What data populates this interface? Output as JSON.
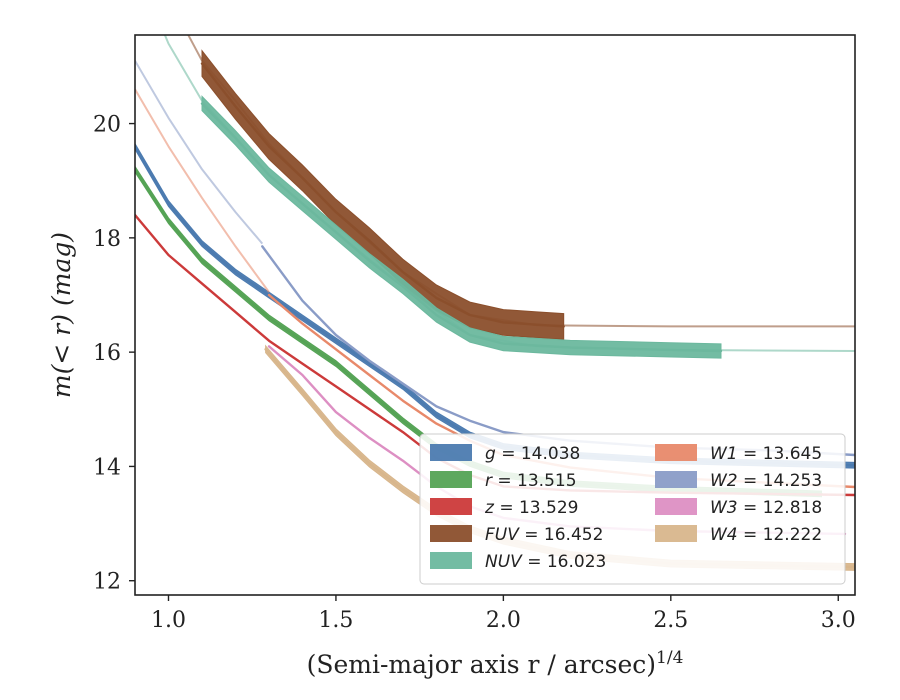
{
  "chart_data": {
    "type": "line",
    "xlabel_main": "(Semi-major axis r / arcsec)",
    "xlabel_sup": "1/4",
    "ylabel": "m(< r) (mag)",
    "xlim": [
      0.9,
      3.05
    ],
    "ylim": [
      21.55,
      11.75
    ],
    "y_inverted": true,
    "xticks": [
      "1.0",
      "1.5",
      "2.0",
      "2.5",
      "3.0"
    ],
    "xtick_values": [
      1.0,
      1.5,
      2.0,
      2.5,
      3.0
    ],
    "yticks": [
      "12",
      "14",
      "16",
      "18",
      "20"
    ],
    "ytick_values": [
      12,
      14,
      16,
      18,
      20
    ],
    "grid": false,
    "legend_placement": "lower-right",
    "series": [
      {
        "name": "g = 14.038",
        "legend_var": "g",
        "legend_val": "14.038",
        "color": "#4c7bb0",
        "solid": [
          [
            0.9,
            19.6
          ],
          [
            1.0,
            18.6
          ],
          [
            1.1,
            17.9
          ],
          [
            1.2,
            17.4
          ],
          [
            1.3,
            17.0
          ],
          [
            1.4,
            16.6
          ],
          [
            1.5,
            16.2
          ],
          [
            1.6,
            15.8
          ],
          [
            1.7,
            15.4
          ],
          [
            1.8,
            14.9
          ],
          [
            1.9,
            14.55
          ],
          [
            2.0,
            14.35
          ],
          [
            2.2,
            14.2
          ],
          [
            2.5,
            14.1
          ],
          [
            3.05,
            14.02
          ]
        ],
        "faint": [],
        "band": 0.1
      },
      {
        "name": "r = 13.515",
        "legend_var": "r",
        "legend_val": "13.515",
        "color": "#55a355",
        "solid": [
          [
            0.9,
            19.2
          ],
          [
            1.0,
            18.3
          ],
          [
            1.1,
            17.6
          ],
          [
            1.2,
            17.1
          ],
          [
            1.3,
            16.6
          ],
          [
            1.4,
            16.2
          ],
          [
            1.5,
            15.8
          ],
          [
            1.6,
            15.3
          ],
          [
            1.7,
            14.8
          ],
          [
            1.8,
            14.35
          ],
          [
            1.9,
            14.05
          ],
          [
            2.0,
            13.85
          ],
          [
            2.2,
            13.7
          ],
          [
            2.5,
            13.6
          ],
          [
            2.95,
            13.52
          ]
        ],
        "faint": [],
        "band": 0.1
      },
      {
        "name": "z = 13.529",
        "legend_var": "z",
        "legend_val": "13.529",
        "color": "#cc3a3a",
        "solid": [
          [
            0.9,
            18.4
          ],
          [
            1.0,
            17.7
          ],
          [
            1.1,
            17.2
          ],
          [
            1.2,
            16.7
          ],
          [
            1.3,
            16.2
          ],
          [
            1.4,
            15.8
          ],
          [
            1.5,
            15.4
          ],
          [
            1.6,
            15.0
          ],
          [
            1.7,
            14.6
          ],
          [
            1.8,
            14.15
          ],
          [
            1.9,
            13.85
          ],
          [
            2.0,
            13.65
          ],
          [
            2.2,
            13.58
          ],
          [
            2.5,
            13.54
          ],
          [
            3.05,
            13.5
          ]
        ],
        "faint": [],
        "band": 0.05
      },
      {
        "name": "FUV = 16.452",
        "legend_var": "FUV",
        "legend_val": "16.452",
        "color": "#8b4f2c",
        "solid": [
          [
            1.1,
            21.05
          ],
          [
            1.2,
            20.3
          ],
          [
            1.3,
            19.6
          ],
          [
            1.4,
            19.05
          ],
          [
            1.5,
            18.45
          ],
          [
            1.6,
            17.95
          ],
          [
            1.7,
            17.4
          ],
          [
            1.8,
            16.95
          ],
          [
            1.9,
            16.65
          ],
          [
            2.0,
            16.52
          ],
          [
            2.1,
            16.48
          ],
          [
            2.18,
            16.45
          ]
        ],
        "faint": [
          [
            0.9,
            23.5
          ],
          [
            1.0,
            22.2
          ],
          [
            1.1,
            21.1
          ],
          [
            1.2,
            20.4
          ],
          [
            1.3,
            19.65
          ],
          [
            1.5,
            18.45
          ],
          [
            1.7,
            17.4
          ],
          [
            1.9,
            16.65
          ],
          [
            2.1,
            16.47
          ],
          [
            2.5,
            16.45
          ],
          [
            3.05,
            16.45
          ]
        ],
        "band": 0.45
      },
      {
        "name": "NUV = 16.023",
        "legend_var": "NUV",
        "legend_val": "16.023",
        "color": "#6cb89e",
        "solid": [
          [
            1.1,
            20.35
          ],
          [
            1.2,
            19.75
          ],
          [
            1.3,
            19.1
          ],
          [
            1.4,
            18.6
          ],
          [
            1.5,
            18.1
          ],
          [
            1.6,
            17.6
          ],
          [
            1.7,
            17.15
          ],
          [
            1.8,
            16.65
          ],
          [
            1.9,
            16.3
          ],
          [
            2.0,
            16.15
          ],
          [
            2.2,
            16.08
          ],
          [
            2.5,
            16.04
          ],
          [
            2.65,
            16.02
          ]
        ],
        "faint": [
          [
            0.9,
            22.8
          ],
          [
            1.0,
            21.4
          ],
          [
            1.1,
            20.4
          ],
          [
            1.2,
            19.75
          ],
          [
            1.3,
            19.1
          ],
          [
            1.5,
            18.1
          ],
          [
            1.7,
            17.15
          ],
          [
            1.9,
            16.3
          ],
          [
            2.1,
            16.1
          ],
          [
            2.5,
            16.04
          ],
          [
            3.05,
            16.02
          ]
        ],
        "band": 0.25
      },
      {
        "name": "W1 = 13.645",
        "legend_var": "W1",
        "legend_val": "13.645",
        "color": "#e8896a",
        "solid": [
          [
            1.3,
            17.0
          ],
          [
            1.4,
            16.5
          ],
          [
            1.5,
            16.05
          ],
          [
            1.6,
            15.6
          ],
          [
            1.7,
            15.15
          ],
          [
            1.8,
            14.75
          ],
          [
            1.9,
            14.45
          ],
          [
            2.0,
            14.2
          ],
          [
            2.2,
            13.98
          ],
          [
            2.5,
            13.8
          ],
          [
            3.05,
            13.64
          ]
        ],
        "faint": [
          [
            0.9,
            20.6
          ],
          [
            1.0,
            19.6
          ],
          [
            1.1,
            18.7
          ],
          [
            1.2,
            17.85
          ],
          [
            1.3,
            17.05
          ]
        ],
        "band": 0.06
      },
      {
        "name": "W2 = 14.253",
        "legend_var": "W2",
        "legend_val": "14.253",
        "color": "#8a9cc7",
        "solid": [
          [
            1.28,
            17.85
          ],
          [
            1.4,
            16.9
          ],
          [
            1.5,
            16.3
          ],
          [
            1.6,
            15.85
          ],
          [
            1.7,
            15.45
          ],
          [
            1.8,
            15.05
          ],
          [
            1.9,
            14.8
          ],
          [
            2.0,
            14.6
          ],
          [
            2.2,
            14.45
          ],
          [
            2.5,
            14.33
          ],
          [
            2.8,
            14.28
          ],
          [
            3.05,
            14.2
          ]
        ],
        "faint": [
          [
            0.9,
            21.1
          ],
          [
            1.0,
            20.1
          ],
          [
            1.1,
            19.2
          ],
          [
            1.2,
            18.45
          ],
          [
            1.28,
            17.9
          ]
        ],
        "band": 0.06
      },
      {
        "name": "W3 = 12.818",
        "legend_var": "W3",
        "legend_val": "12.818",
        "color": "#dd8fc3",
        "solid": [
          [
            1.3,
            16.1
          ],
          [
            1.4,
            15.6
          ],
          [
            1.5,
            14.95
          ],
          [
            1.6,
            14.5
          ],
          [
            1.7,
            14.1
          ],
          [
            1.8,
            13.65
          ],
          [
            1.9,
            13.3
          ],
          [
            2.0,
            13.1
          ],
          [
            2.2,
            12.95
          ],
          [
            2.5,
            12.87
          ],
          [
            3.02,
            12.82
          ]
        ],
        "faint": [],
        "band": 0.06
      },
      {
        "name": "W4 = 12.222",
        "legend_var": "W4",
        "legend_val": "12.222",
        "color": "#d8b68c",
        "solid": [
          [
            1.29,
            16.05
          ],
          [
            1.4,
            15.3
          ],
          [
            1.5,
            14.6
          ],
          [
            1.6,
            14.05
          ],
          [
            1.7,
            13.6
          ],
          [
            1.8,
            13.2
          ],
          [
            1.9,
            12.9
          ],
          [
            2.0,
            12.7
          ],
          [
            2.2,
            12.45
          ],
          [
            2.5,
            12.3
          ],
          [
            3.05,
            12.24
          ]
        ],
        "faint": [],
        "band": 0.12
      }
    ]
  }
}
